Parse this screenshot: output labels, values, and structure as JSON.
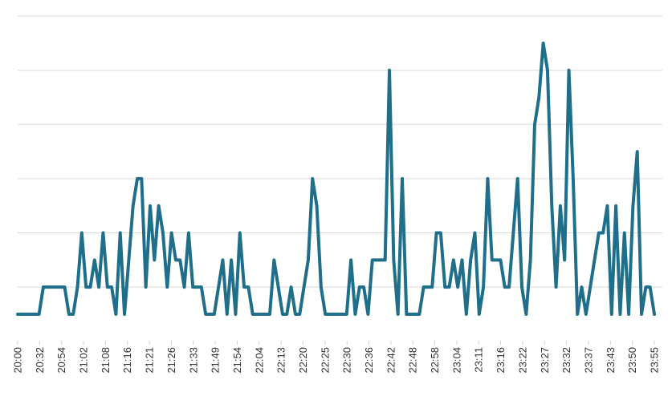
{
  "chart_data": {
    "type": "line",
    "title": "",
    "xlabel": "",
    "ylabel": "",
    "ylim": [
      0,
      11
    ],
    "grid": true,
    "legend": "none",
    "color": "#1f6f8b",
    "tick_labels": [
      "20:00",
      "20:32",
      "20:54",
      "21:02",
      "21:08",
      "21:16",
      "21:21",
      "21:26",
      "21:33",
      "21:49",
      "21:54",
      "22:04",
      "22:13",
      "22:20",
      "22:25",
      "22:30",
      "22:36",
      "22:42",
      "22:48",
      "22:58",
      "23:04",
      "23:11",
      "23:16",
      "23:22",
      "23:27",
      "23:32",
      "23:37",
      "23:43",
      "23:50",
      "23:55"
    ],
    "series": [
      {
        "values": [
          0,
          0,
          0,
          0,
          0,
          0,
          1,
          1,
          1,
          1,
          1,
          1,
          0,
          0,
          1,
          3,
          1,
          1,
          2,
          1,
          3,
          1,
          1,
          0,
          3,
          0,
          2,
          4,
          5,
          5,
          1,
          4,
          2,
          4,
          3,
          1,
          3,
          2,
          2,
          1,
          3,
          1,
          1,
          1,
          0,
          0,
          0,
          1,
          2,
          0,
          2,
          0,
          3,
          1,
          1,
          0,
          0,
          0,
          0,
          0,
          2,
          1,
          0,
          0,
          1,
          0,
          0,
          1,
          2,
          5,
          4,
          1,
          0,
          0,
          0,
          0,
          0,
          0,
          2,
          0,
          1,
          1,
          0,
          2,
          2,
          2,
          2,
          9,
          2,
          0,
          5,
          0,
          0,
          0,
          0,
          1,
          1,
          1,
          3,
          3,
          1,
          1,
          2,
          1,
          2,
          0,
          2,
          3,
          0,
          1,
          5,
          2,
          2,
          2,
          1,
          1,
          3,
          5,
          1,
          0,
          2,
          7,
          8,
          10,
          9,
          4,
          1,
          4,
          2,
          9,
          5,
          0,
          1,
          0,
          1,
          2,
          3,
          3,
          4,
          0,
          4,
          0,
          3,
          0,
          4,
          6,
          0,
          1,
          1,
          0
        ]
      }
    ]
  }
}
